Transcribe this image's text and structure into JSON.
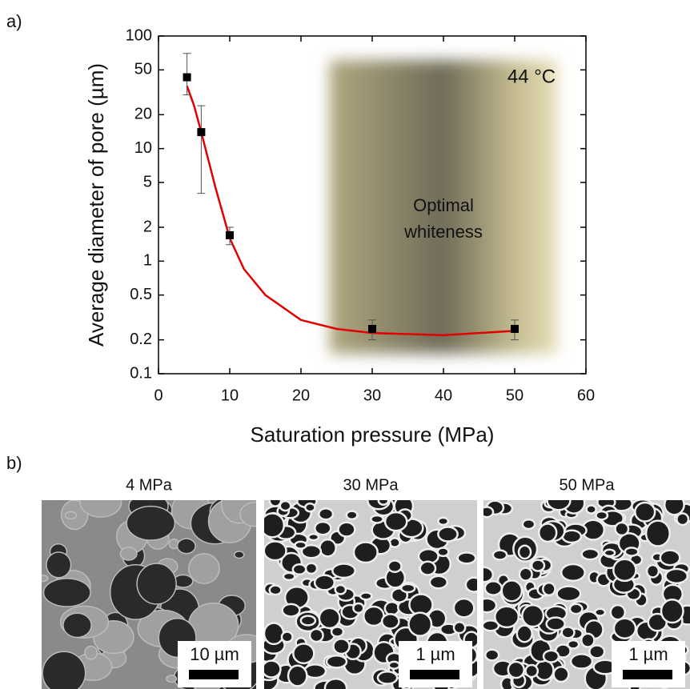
{
  "panel_labels": [
    "a)",
    "b)"
  ],
  "chart_data": {
    "type": "scatter",
    "x_label": "Saturation pressure (MPa)",
    "y_label": "Average diameter of pore (µm)",
    "xlim": [
      0,
      60
    ],
    "xticks": [
      0,
      10,
      20,
      30,
      40,
      50,
      60
    ],
    "ylim": [
      0.1,
      100
    ],
    "yticks": [
      0.1,
      0.2,
      0.5,
      1,
      2,
      5,
      10,
      20,
      50,
      100
    ],
    "y_scale": "log",
    "x": [
      4,
      6,
      10,
      30,
      50
    ],
    "values": [
      43,
      14,
      1.7,
      0.25,
      0.25
    ],
    "error_lower": [
      30,
      4,
      1.4,
      0.2,
      0.2
    ],
    "error_upper": [
      70,
      24,
      2.0,
      0.3,
      0.3
    ],
    "color": "#000000",
    "fit_line": {
      "color": "#e00000",
      "x": [
        4,
        5,
        6,
        8,
        10,
        12,
        15,
        20,
        25,
        30,
        40,
        50
      ],
      "values": [
        36,
        24,
        14,
        4.5,
        1.6,
        0.85,
        0.5,
        0.3,
        0.25,
        0.23,
        0.22,
        0.24
      ]
    },
    "shaded_region": {
      "xlim": [
        24,
        56
      ]
    },
    "annotations": [
      "Optimal whiteness",
      "44 °C"
    ]
  },
  "images": [
    {
      "caption": "4 MPa",
      "scale_bar": "10 µm"
    },
    {
      "caption": "30 MPa",
      "scale_bar": "1 µm"
    },
    {
      "caption": "50 MPa",
      "scale_bar": "1 µm"
    }
  ]
}
